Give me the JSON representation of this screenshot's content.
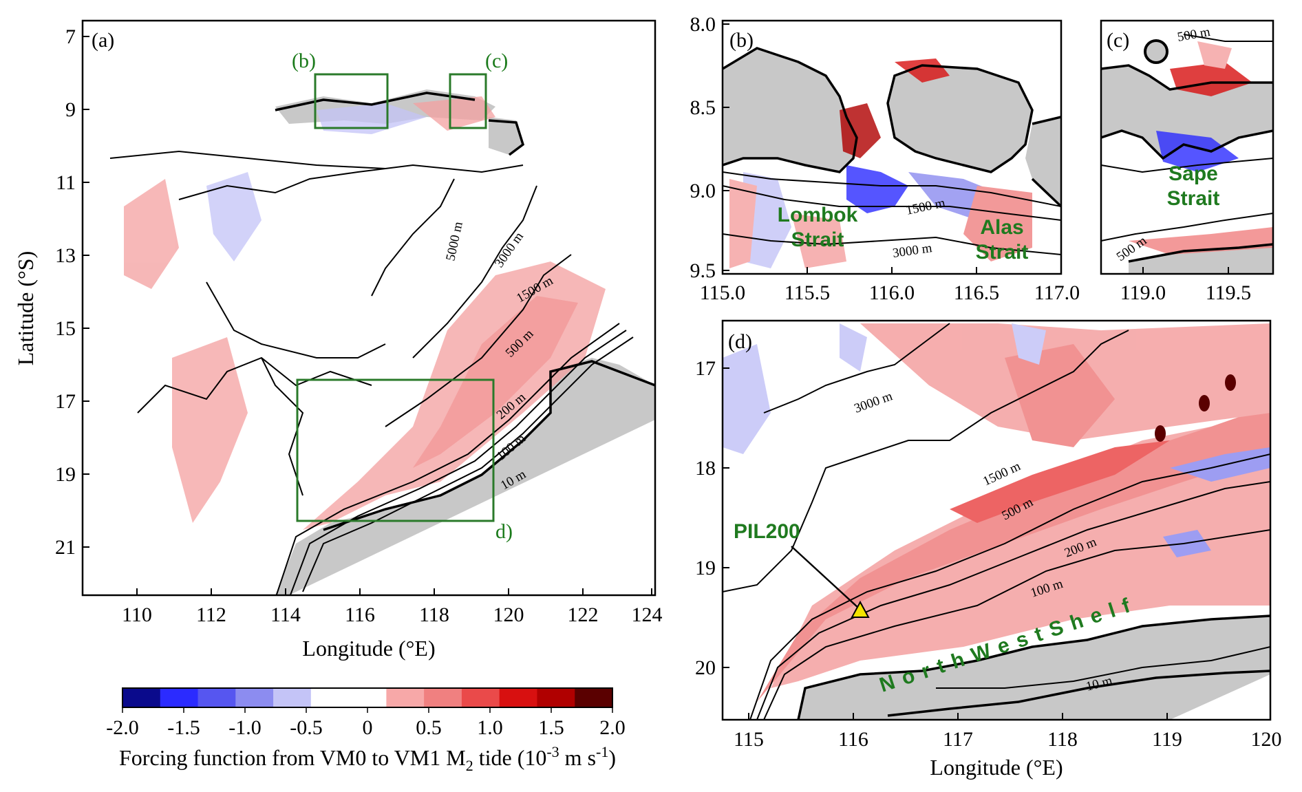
{
  "panels": {
    "a": {
      "label": "(a)",
      "box_labels": {
        "b": "(b)",
        "c": "(c)",
        "d": "d)"
      },
      "y_ticks": [
        "7",
        "9",
        "11",
        "13",
        "15",
        "17",
        "19",
        "21"
      ],
      "x_ticks": [
        "110",
        "112",
        "114",
        "116",
        "118",
        "120",
        "122",
        "124"
      ],
      "xlabel": "Longitude (°E)",
      "ylabel": "Latitude (°S)",
      "contours": [
        "5000 m",
        "3000 m",
        "1500 m",
        "500 m",
        "200 m",
        "100 m",
        "10 m"
      ]
    },
    "b": {
      "label": "(b)",
      "y_ticks": [
        "8.0",
        "8.5",
        "9.0",
        "9.5"
      ],
      "x_ticks": [
        "115.0",
        "115.5",
        "116.0",
        "116.5",
        "117.0"
      ],
      "contours": [
        "1500 m",
        "3000 m"
      ],
      "strait_lombok": [
        "Lombok",
        "Strait"
      ],
      "strait_alas": [
        "Alas",
        "Strait"
      ]
    },
    "c": {
      "label": "(c)",
      "x_ticks": [
        "119.0",
        "119.5"
      ],
      "contours": [
        "500 m",
        "500 m"
      ],
      "strait_sape": [
        "Sape",
        "Strait"
      ]
    },
    "d": {
      "label": "(d)",
      "y_ticks": [
        "17",
        "18",
        "19",
        "20"
      ],
      "x_ticks": [
        "115",
        "116",
        "117",
        "118",
        "119",
        "120"
      ],
      "xlabel": "Longitude (°E)",
      "contours": [
        "3000 m",
        "1500 m",
        "500 m",
        "200 m",
        "100 m",
        "10 m"
      ],
      "station": "PIL200",
      "shelf": "NorthWestShelf"
    }
  },
  "colorbar": {
    "ticks": [
      "-2.0",
      "-1.5",
      "-1.0",
      "-0.5",
      "0",
      "0.5",
      "1.0",
      "1.5",
      "2.0"
    ],
    "colors": [
      "#0a0a8c",
      "#2b2bff",
      "#5656f0",
      "#8c8cf0",
      "#c4c4f7",
      "#ffffff",
      "#ffffff",
      "#f7a8a8",
      "#f08080",
      "#ea4a4a",
      "#d81010",
      "#b00000",
      "#5a0000"
    ],
    "label_pre": "Forcing function from VM0 to VM1 M",
    "label_sub": "2",
    "label_mid": " tide (10",
    "label_sup": "-3",
    "label_post": " m s",
    "label_sup2": "-1",
    "label_end": ")"
  },
  "colors": {
    "land": "#c8c8c8",
    "box": "#2a7a2a",
    "label_green": "#1f7a1f",
    "station": "#f5e400"
  }
}
